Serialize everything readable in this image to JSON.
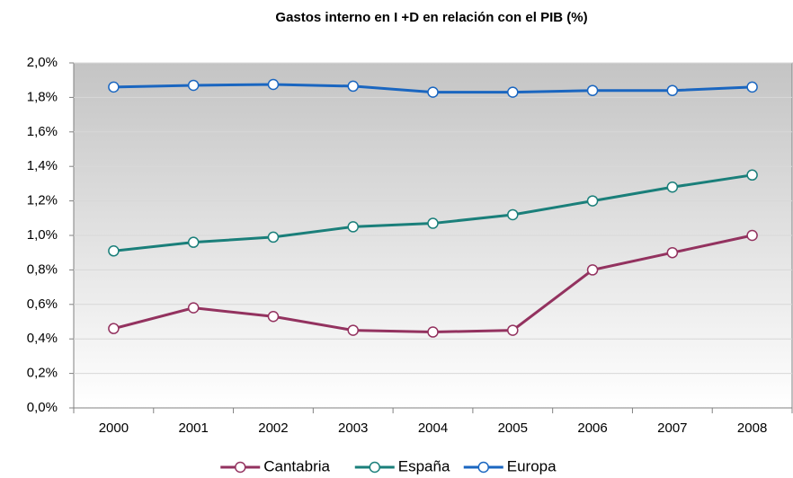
{
  "chart_data": {
    "type": "line",
    "title": "Gastos interno en I +D en relación con el PIB (%)",
    "categories": [
      "2000",
      "2001",
      "2002",
      "2003",
      "2004",
      "2005",
      "2006",
      "2007",
      "2008"
    ],
    "series": [
      {
        "name": "Cantabria",
        "color": "#93325f",
        "values": [
          0.46,
          0.58,
          0.53,
          0.45,
          0.44,
          0.45,
          0.8,
          0.9,
          1.0
        ]
      },
      {
        "name": "España",
        "color": "#1a7f7a",
        "values": [
          0.91,
          0.96,
          0.99,
          1.05,
          1.07,
          1.12,
          1.2,
          1.28,
          1.35
        ]
      },
      {
        "name": "Europa",
        "color": "#1a66c0",
        "values": [
          1.86,
          1.87,
          1.875,
          1.865,
          1.83,
          1.83,
          1.84,
          1.84,
          1.86
        ]
      }
    ],
    "ylim": [
      0,
      2.0
    ],
    "yticks": [
      {
        "value": 0,
        "label": "0,0%"
      },
      {
        "value": 0.2,
        "label": "0,2%"
      },
      {
        "value": 0.4,
        "label": "0,4%"
      },
      {
        "value": 0.6,
        "label": "0,6%"
      },
      {
        "value": 0.8,
        "label": "0,8%"
      },
      {
        "value": 1.0,
        "label": "1,0%"
      },
      {
        "value": 1.2,
        "label": "1,2%"
      },
      {
        "value": 1.4,
        "label": "1,4%"
      },
      {
        "value": 1.6,
        "label": "1,6%"
      },
      {
        "value": 1.8,
        "label": "1,8%"
      },
      {
        "value": 2.0,
        "label": "2,0%"
      }
    ],
    "grid": true,
    "legend": "bottom"
  }
}
